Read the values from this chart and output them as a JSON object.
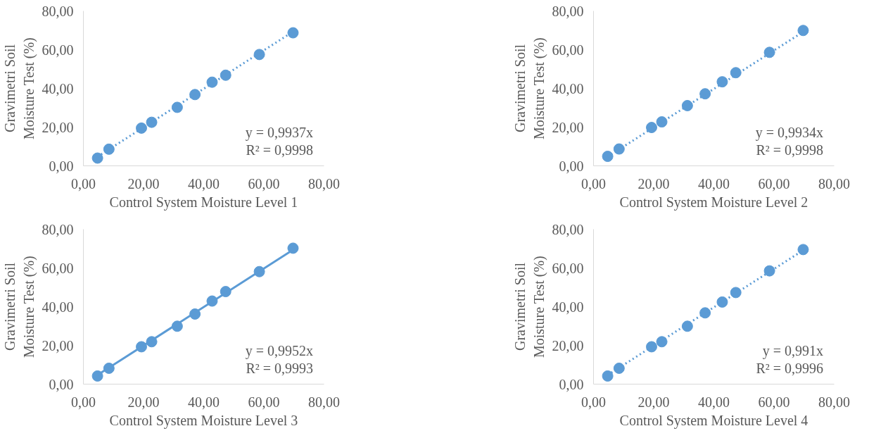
{
  "chart_data": [
    {
      "type": "scatter",
      "xlabel": "Control System Moisture Level 1",
      "ylabel": "Gravimetri Soil\nMoisture Test (%)",
      "series": [
        {
          "color": "#5b9bd5",
          "marker": "circle",
          "x": [
            4.7,
            8.5,
            19.3,
            22.7,
            31.2,
            37.1,
            42.8,
            47.3,
            58.5,
            69.7
          ],
          "values": [
            4.0,
            8.6,
            19.5,
            22.5,
            30.2,
            36.8,
            43.2,
            46.8,
            57.5,
            68.7
          ]
        },
        {
          "type": "line",
          "color": "#5b9bd5",
          "line_style": "dotted",
          "marker": "none",
          "x": [
            4.7,
            69.7
          ],
          "values": [
            4.7,
            69.3
          ]
        }
      ],
      "annotations": [
        "y = 0,9937x\nR² = 0,9998"
      ],
      "xlim": [
        0,
        80
      ],
      "ylim": [
        0,
        80
      ],
      "xticks": [
        {
          "value": 0,
          "label": "0,00"
        },
        {
          "value": 20,
          "label": "20,00"
        },
        {
          "value": 40,
          "label": "40,00"
        },
        {
          "value": 60,
          "label": "60,00"
        },
        {
          "value": 80,
          "label": "80,00"
        }
      ],
      "yticks": [
        {
          "value": 0,
          "label": "0,00"
        },
        {
          "value": 20,
          "label": "20,00"
        },
        {
          "value": 40,
          "label": "40,00"
        },
        {
          "value": 60,
          "label": "60,00"
        },
        {
          "value": 80,
          "label": "80,00"
        }
      ],
      "grid": false
    },
    {
      "type": "scatter",
      "xlabel": "Control System Moisture Level 2",
      "ylabel": "Gravimetri Soil\nMoisture Test (%)",
      "series": [
        {
          "color": "#5b9bd5",
          "marker": "circle",
          "x": [
            4.7,
            8.5,
            19.3,
            22.7,
            31.2,
            37.1,
            42.8,
            47.3,
            58.5,
            69.7
          ],
          "values": [
            4.9,
            8.7,
            19.8,
            22.7,
            31.1,
            37.2,
            43.4,
            48.1,
            58.6,
            69.9
          ]
        },
        {
          "type": "line",
          "color": "#5b9bd5",
          "line_style": "dotted",
          "marker": "none",
          "x": [
            4.7,
            69.7
          ],
          "values": [
            4.7,
            69.2
          ]
        }
      ],
      "annotations": [
        "y = 0,9934x\nR² = 0,9998"
      ],
      "xlim": [
        0,
        80
      ],
      "ylim": [
        0,
        80
      ],
      "xticks": [
        {
          "value": 0,
          "label": "0,00"
        },
        {
          "value": 20,
          "label": "20,00"
        },
        {
          "value": 40,
          "label": "40,00"
        },
        {
          "value": 60,
          "label": "60,00"
        },
        {
          "value": 80,
          "label": "80,00"
        }
      ],
      "yticks": [
        {
          "value": 0,
          "label": "0,00"
        },
        {
          "value": 20,
          "label": "20,00"
        },
        {
          "value": 40,
          "label": "40,00"
        },
        {
          "value": 60,
          "label": "60,00"
        },
        {
          "value": 80,
          "label": "80,00"
        }
      ],
      "grid": false
    },
    {
      "type": "scatter",
      "xlabel": "Control System Moisture Level 3",
      "ylabel": "Gravimetri Soil\nMoisture Test (%)",
      "series": [
        {
          "color": "#5b9bd5",
          "marker": "circle",
          "x": [
            4.7,
            8.5,
            19.3,
            22.7,
            31.2,
            37.1,
            42.8,
            47.3,
            58.5,
            69.7
          ],
          "values": [
            4.2,
            8.2,
            19.3,
            21.9,
            29.9,
            36.2,
            42.9,
            47.8,
            58.1,
            70.2
          ]
        },
        {
          "type": "line",
          "color": "#5b9bd5",
          "line_style": "solid",
          "marker": "none",
          "x": [
            4.7,
            69.7
          ],
          "values": [
            4.7,
            69.4
          ]
        }
      ],
      "annotations": [
        "y = 0,9952x\nR² = 0,9993"
      ],
      "xlim": [
        0,
        80
      ],
      "ylim": [
        0,
        80
      ],
      "xticks": [
        {
          "value": 0,
          "label": "0,00"
        },
        {
          "value": 20,
          "label": "20,00"
        },
        {
          "value": 40,
          "label": "40,00"
        },
        {
          "value": 60,
          "label": "60,00"
        },
        {
          "value": 80,
          "label": "80,00"
        }
      ],
      "yticks": [
        {
          "value": 0,
          "label": "0,00"
        },
        {
          "value": 20,
          "label": "20,00"
        },
        {
          "value": 40,
          "label": "40,00"
        },
        {
          "value": 60,
          "label": "60,00"
        },
        {
          "value": 80,
          "label": "80,00"
        }
      ],
      "grid": false
    },
    {
      "type": "scatter",
      "xlabel": "Control System Moisture Level 4",
      "ylabel": "Gravimetri Soil\nMoisture Test (%)",
      "series": [
        {
          "color": "#5b9bd5",
          "marker": "circle",
          "x": [
            4.7,
            8.5,
            19.3,
            22.7,
            31.2,
            37.1,
            42.8,
            47.3,
            58.5,
            69.7
          ],
          "values": [
            4.2,
            8.2,
            19.3,
            21.9,
            29.9,
            36.8,
            42.4,
            47.3,
            58.5,
            69.5
          ]
        },
        {
          "type": "line",
          "color": "#5b9bd5",
          "line_style": "dotted",
          "marker": "none",
          "x": [
            4.7,
            69.7
          ],
          "values": [
            4.7,
            69.1
          ]
        }
      ],
      "annotations": [
        "y = 0,991x\nR² = 0,9996"
      ],
      "xlim": [
        0,
        80
      ],
      "ylim": [
        0,
        80
      ],
      "xticks": [
        {
          "value": 0,
          "label": "0,00"
        },
        {
          "value": 20,
          "label": "20,00"
        },
        {
          "value": 40,
          "label": "40,00"
        },
        {
          "value": 60,
          "label": "60,00"
        },
        {
          "value": 80,
          "label": "80,00"
        }
      ],
      "yticks": [
        {
          "value": 0,
          "label": "0,00"
        },
        {
          "value": 20,
          "label": "20,00"
        },
        {
          "value": 40,
          "label": "40,00"
        },
        {
          "value": 60,
          "label": "60,00"
        },
        {
          "value": 80,
          "label": "80,00"
        }
      ],
      "grid": false
    }
  ]
}
